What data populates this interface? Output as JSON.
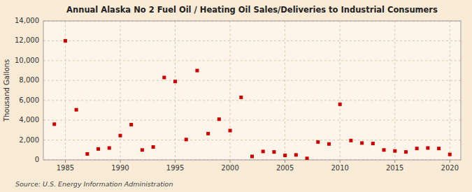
{
  "chart_data": {
    "type": "scatter",
    "title": "Annual Alaska No 2 Fuel Oil / Heating Oil Sales/Deliveries to Industrial Consumers",
    "y_label": "Thousand Gallons",
    "source": "Source: U.S. Energy Information Administration",
    "x": [
      1984,
      1985,
      1986,
      1987,
      1988,
      1989,
      1990,
      1991,
      1992,
      1993,
      1994,
      1995,
      1996,
      1997,
      1998,
      1999,
      2000,
      2001,
      2002,
      2003,
      2004,
      2005,
      2006,
      2007,
      2008,
      2009,
      2010,
      2011,
      2012,
      2013,
      2014,
      2015,
      2016,
      2017,
      2018,
      2019,
      2020
    ],
    "values": [
      3600,
      12000,
      5050,
      600,
      1100,
      1200,
      2450,
      3550,
      1000,
      1300,
      8300,
      7900,
      2050,
      9000,
      2650,
      4100,
      2950,
      6300,
      350,
      850,
      800,
      450,
      500,
      150,
      1800,
      1600,
      5600,
      1950,
      1700,
      1650,
      1000,
      900,
      800,
      1150,
      1200,
      1150,
      550
    ],
    "color": "#cc0000",
    "marker": "square",
    "xlim": [
      1983,
      2021
    ],
    "ylim": [
      0,
      14000
    ],
    "xticks": [
      1985,
      1990,
      1995,
      2000,
      2005,
      2010,
      2015,
      2020
    ],
    "yticks": [
      0,
      {
        "value": 2000,
        "label": "2,000"
      },
      {
        "value": 4000,
        "label": "4,000"
      },
      {
        "value": 6000,
        "label": "6,000"
      },
      {
        "value": 8000,
        "label": "8,000"
      },
      {
        "value": 10000,
        "label": "10,000"
      },
      {
        "value": 12000,
        "label": "12,000"
      },
      {
        "value": 14000,
        "label": "14,000"
      }
    ],
    "grid": true
  }
}
